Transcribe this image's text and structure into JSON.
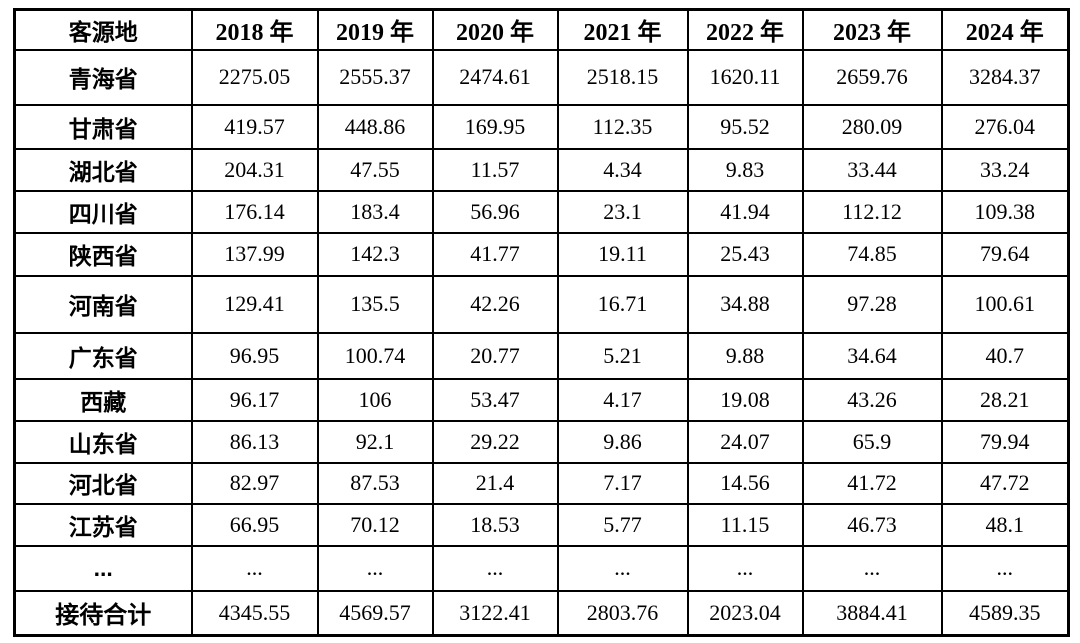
{
  "chart_data": {
    "type": "table",
    "columns": [
      "客源地",
      "2018 年",
      "2019 年",
      "2020 年",
      "2021 年",
      "2022 年",
      "2023 年",
      "2024 年"
    ],
    "rows": [
      {
        "label": "青海省",
        "values": [
          "2275.05",
          "2555.37",
          "2474.61",
          "2518.15",
          "1620.11",
          "2659.76",
          "3284.37"
        ]
      },
      {
        "label": "甘肃省",
        "values": [
          "419.57",
          "448.86",
          "169.95",
          "112.35",
          "95.52",
          "280.09",
          "276.04"
        ]
      },
      {
        "label": "湖北省",
        "values": [
          "204.31",
          "47.55",
          "11.57",
          "4.34",
          "9.83",
          "33.44",
          "33.24"
        ]
      },
      {
        "label": "四川省",
        "values": [
          "176.14",
          "183.4",
          "56.96",
          "23.1",
          "41.94",
          "112.12",
          "109.38"
        ]
      },
      {
        "label": "陕西省",
        "values": [
          "137.99",
          "142.3",
          "41.77",
          "19.11",
          "25.43",
          "74.85",
          "79.64"
        ]
      },
      {
        "label": "河南省",
        "values": [
          "129.41",
          "135.5",
          "42.26",
          "16.71",
          "34.88",
          "97.28",
          "100.61"
        ]
      },
      {
        "label": "广东省",
        "values": [
          "96.95",
          "100.74",
          "20.77",
          "5.21",
          "9.88",
          "34.64",
          "40.7"
        ]
      },
      {
        "label": "西藏",
        "values": [
          "96.17",
          "106",
          "53.47",
          "4.17",
          "19.08",
          "43.26",
          "28.21"
        ]
      },
      {
        "label": "山东省",
        "values": [
          "86.13",
          "92.1",
          "29.22",
          "9.86",
          "24.07",
          "65.9",
          "79.94"
        ]
      },
      {
        "label": "河北省",
        "values": [
          "82.97",
          "87.53",
          "21.4",
          "7.17",
          "14.56",
          "41.72",
          "47.72"
        ]
      },
      {
        "label": "江苏省",
        "values": [
          "66.95",
          "70.12",
          "18.53",
          "5.77",
          "11.15",
          "46.73",
          "48.1"
        ]
      },
      {
        "label": "...",
        "values": [
          "...",
          "...",
          "...",
          "...",
          "...",
          "...",
          "..."
        ]
      },
      {
        "label": "接待合计",
        "values": [
          "4345.55",
          "4569.57",
          "3122.41",
          "2803.76",
          "2023.04",
          "3884.41",
          "4589.35"
        ]
      }
    ]
  },
  "colors": {
    "border": "#000000",
    "text": "#000000",
    "background": "#ffffff"
  }
}
